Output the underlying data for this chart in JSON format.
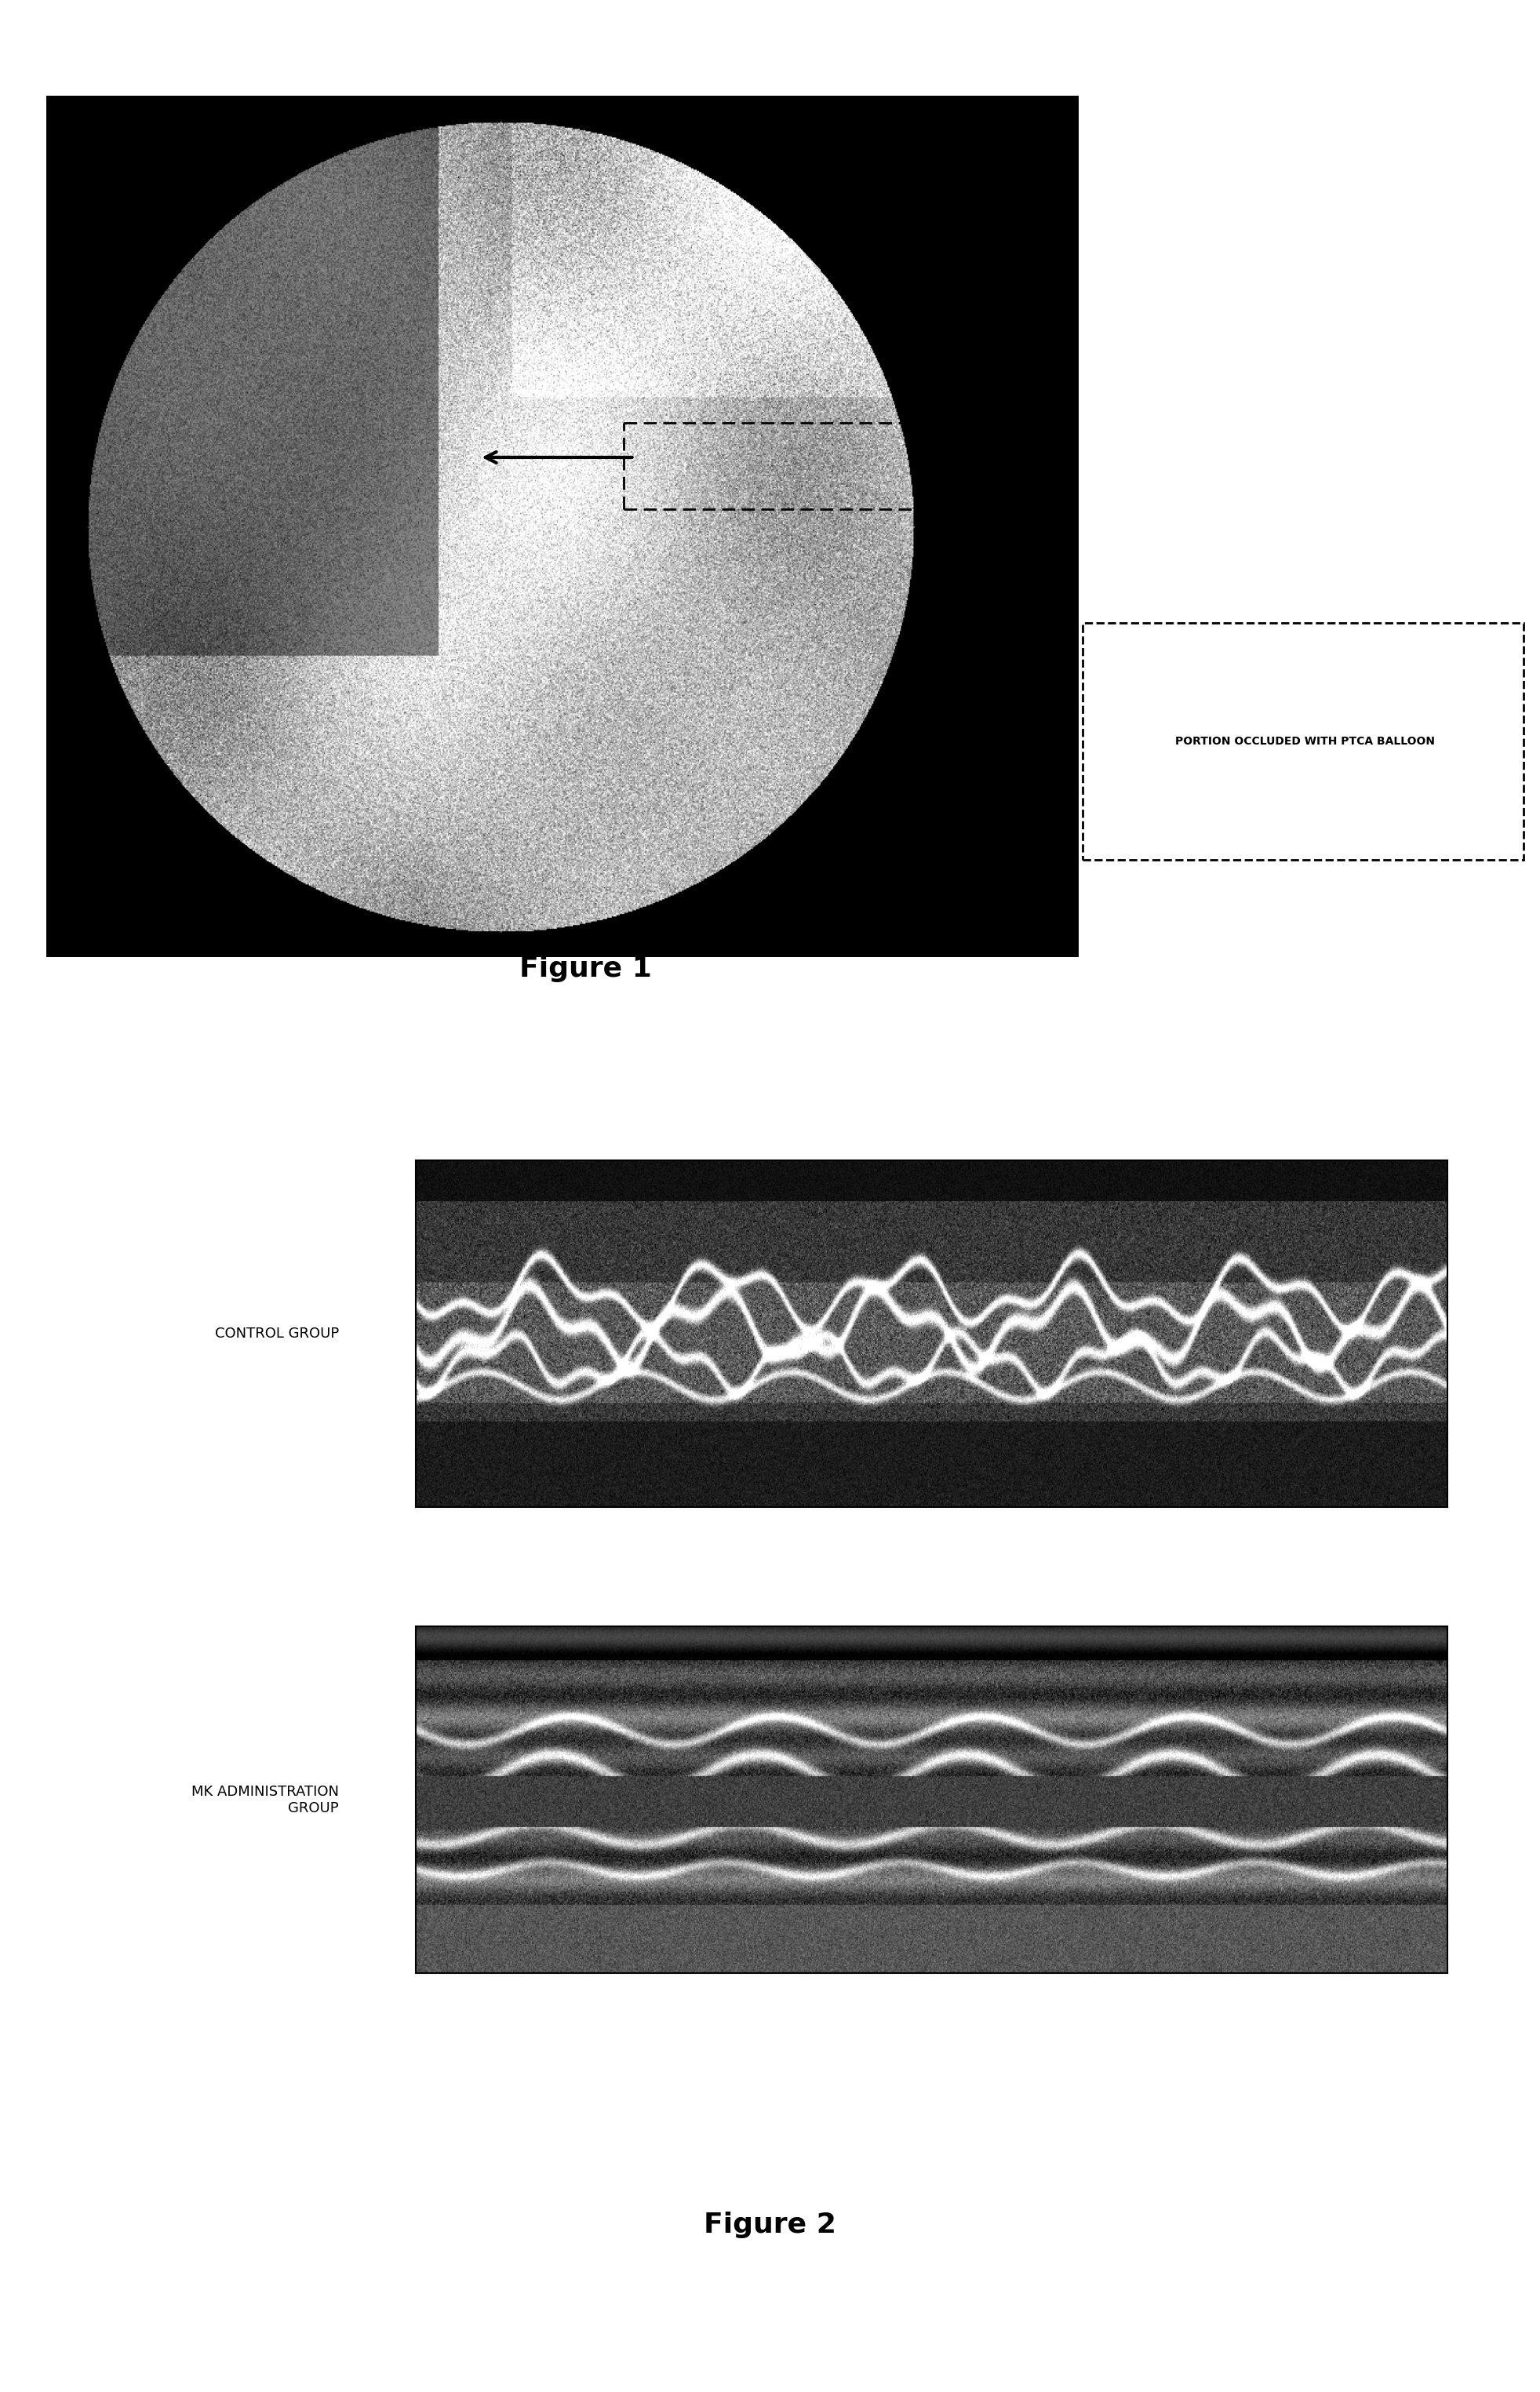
{
  "fig1_title": "Figure 1",
  "fig2_title": "Figure 2",
  "label_control": "CONTROL GROUP",
  "label_mk": "MK ADMINISTRATION\nGROUP",
  "annotation_text": "PORTION OCCLUDED WITH PTCA BALLOON",
  "bg_color": "#ffffff",
  "fig_width": 19.63,
  "fig_height": 30.49,
  "title_fontsize": 26,
  "label_fontsize": 13,
  "annotation_fontsize": 10
}
